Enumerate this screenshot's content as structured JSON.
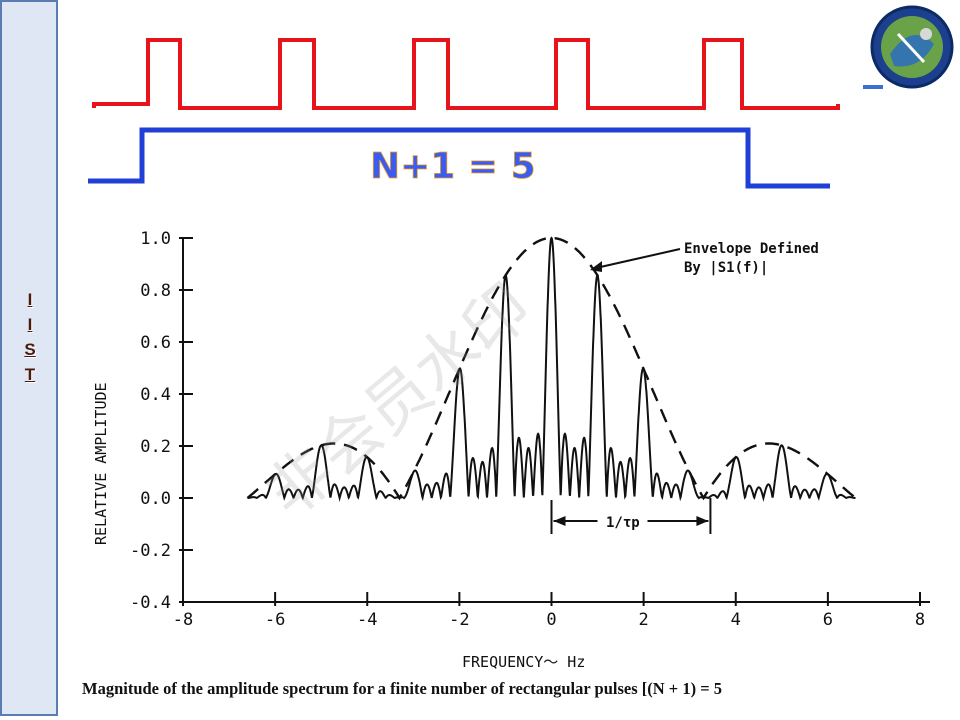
{
  "sidebar": {
    "letters": [
      "I",
      "I",
      "S",
      "T"
    ]
  },
  "logo": {
    "name": "iist-logo-icon"
  },
  "pulse_diagram": {
    "label": "N+1 = 5",
    "pulse_color": "#e8141b",
    "window_color": "#1f3fd6"
  },
  "watermark": "非会员水印",
  "chart_data": {
    "type": "line",
    "xlabel": "FREQUENCY～ Hz",
    "ylabel": "RELATIVE AMPLITUDE",
    "xlim": [
      -8,
      8
    ],
    "ylim": [
      -0.4,
      1.0
    ],
    "x_ticks": [
      "-8",
      "-6",
      "-4",
      "-2",
      "0",
      "2",
      "4",
      "6",
      "8"
    ],
    "y_ticks": [
      "1.0",
      "0.8",
      "0.6",
      "0.4",
      "0.2",
      "0.0",
      "-0.2",
      "-0.4"
    ],
    "annotation": "Envelope Defined",
    "annotation_line2": "By |S1(f)|",
    "interval_label": "1/τp",
    "series": [
      {
        "style": "solid",
        "description_points": [
          [
            -5,
            0.21
          ],
          [
            -4,
            0.15
          ],
          [
            -2,
            0.5
          ],
          [
            -1,
            0.86
          ],
          [
            0,
            1.0
          ],
          [
            1,
            0.85
          ],
          [
            2,
            0.5
          ],
          [
            4,
            0.15
          ],
          [
            5,
            0.21
          ]
        ]
      },
      {
        "style": "dashed",
        "description_points": [
          [
            -6.6,
            0.0
          ],
          [
            -5,
            0.21
          ],
          [
            -3.3,
            0.0
          ],
          [
            0,
            1.0
          ],
          [
            3.3,
            0.0
          ],
          [
            5,
            0.21
          ],
          [
            6.6,
            0.0
          ]
        ]
      }
    ]
  },
  "caption": "Magnitude of the amplitude spectrum for a finite number of rectangular pulses [(N + 1) = 5"
}
